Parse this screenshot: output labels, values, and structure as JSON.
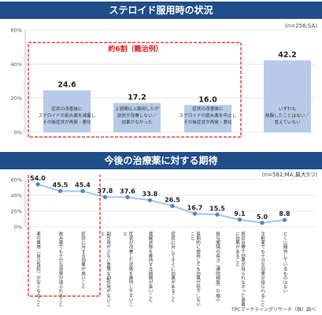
{
  "header1": "ステロイド服用時の状況",
  "header2": "今後の治療薬に対する期待",
  "footer": "TPCマーケティングリサーチ（株）調べ",
  "colors": {
    "band": "#1f4e8a",
    "bar": "#b7cbe8",
    "line": "#a9c3e6",
    "marker": "#4a86d0",
    "highlight": "#e02020"
  },
  "chart_data": [
    {
      "type": "bar",
      "note": "(n=256;SA)",
      "ylim": [
        0,
        60
      ],
      "yticks": [
        "0%",
        "20%",
        "40%",
        "60%"
      ],
      "highlight_title": "約6割（難治例）",
      "categories": [
        [
          "症状の改善後に",
          "ステロイドの飲み薬を減量し",
          "その後症状が再発・悪化"
        ],
        [
          "２週間以上服用したが",
          "症状が改善しない／",
          "効果がなかった"
        ],
        [
          "症状の改善後に",
          "ステロイドの飲み薬を中止し",
          "その後症状が再発・悪化"
        ],
        [
          "いずれも",
          "経験したことはない／",
          "覚えていない"
        ]
      ],
      "values": [
        24.6,
        17.2,
        16.0,
        42.2
      ],
      "value_labels": [
        "24.6",
        "17.2",
        "16.0",
        "42.2"
      ]
    },
    {
      "type": "line",
      "note": "(n=582;MA;最大5つ)",
      "ylim": [
        0,
        60
      ],
      "yticks": [
        "0%",
        "20%",
        "40%",
        "60%"
      ],
      "categories": [
        "薬の費用（自己負担）が安くなること",
        "飲み薬でも十分な効果が得られること",
        "症状に対する効果が高いこと",
        "副作用が少ない重篤な副作用がないこと",
        "症状が改善した状態を維持しやすいこと",
        "寛解状態を維持する期間が長いこと",
        "症状に対してすぐに効果があること",
        "長期的に使用しても効果が低下しないこと",
        "投与間隔の長さ（通院頻度）の縮小",
        "既存治療で効果が得られなかった患者に効果があること",
        "注射薬でも十分な効果が得られること",
        "とくに期待しているものはない"
      ],
      "values": [
        54.0,
        45.5,
        45.4,
        37.8,
        37.6,
        33.8,
        26.5,
        16.7,
        15.5,
        9.1,
        5.0,
        8.8
      ],
      "value_labels": [
        "54.0",
        "45.5",
        "45.4",
        "37.8",
        "37.6",
        "33.8",
        "26.5",
        "16.7",
        "15.5",
        "9.1",
        "5.0",
        "8.8"
      ]
    }
  ]
}
